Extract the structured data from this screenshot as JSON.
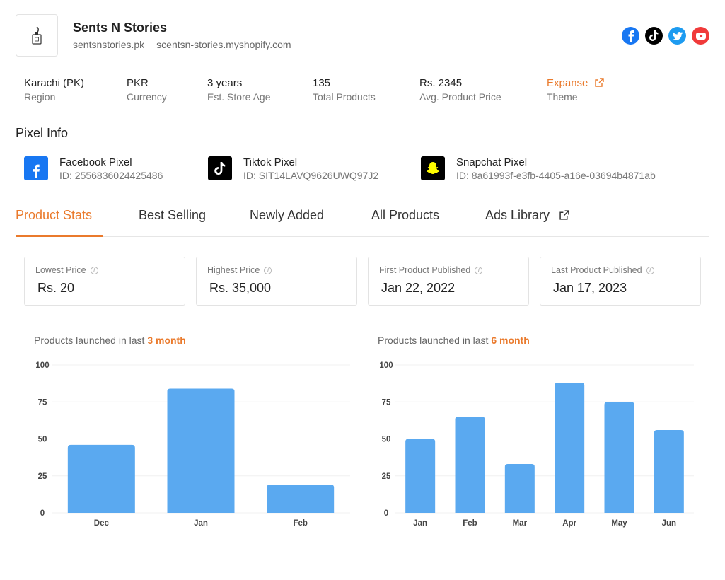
{
  "store": {
    "name": "Sents N Stories",
    "domain": "sentsnstories.pk",
    "shopify_url": "scentsn-stories.myshopify.com",
    "socials": [
      {
        "icon": "facebook-icon",
        "color": "#1877f2"
      },
      {
        "icon": "tiktok-icon",
        "color": "#000000"
      },
      {
        "icon": "twitter-icon",
        "color": "#1d9bf0"
      },
      {
        "icon": "youtube-icon",
        "color": "#f03a3a"
      }
    ]
  },
  "meta": [
    {
      "value": "Karachi (PK)",
      "label": "Region"
    },
    {
      "value": "PKR",
      "label": "Currency"
    },
    {
      "value": "3 years",
      "label": "Est. Store Age"
    },
    {
      "value": "135",
      "label": "Total Products"
    },
    {
      "value": "Rs. 2345",
      "label": "Avg. Product Price"
    },
    {
      "value": "Expanse",
      "label": "Theme"
    }
  ],
  "pixel_info": {
    "title": "Pixel Info",
    "pixels": [
      {
        "name": "Facebook Pixel",
        "id": "ID: 2556836024425486",
        "icon": "facebook-pixel-icon",
        "color": "#1877f2"
      },
      {
        "name": "Tiktok Pixel",
        "id": "ID: SIT14LAVQ9626UWQ97J2",
        "icon": "tiktok-pixel-icon",
        "color": "#000000"
      },
      {
        "name": "Snapchat Pixel",
        "id": "ID: 8a61993f-e3fb-4405-a16e-03694b4871ab",
        "icon": "snapchat-pixel-icon",
        "color": "#000000"
      }
    ]
  },
  "tabs": [
    "Product Stats",
    "Best Selling",
    "Newly Added",
    "All Products",
    "Ads Library"
  ],
  "stats": [
    {
      "label": "Lowest Price",
      "value": "Rs. 20"
    },
    {
      "label": "Highest Price",
      "value": "Rs. 35,000"
    },
    {
      "label": "First Product Published",
      "value": "Jan 22, 2022"
    },
    {
      "label": "Last Product Published",
      "value": "Jan 17, 2023"
    }
  ],
  "colors": {
    "accent": "#ea7a2c",
    "bar": "#5aa9f0"
  },
  "chart_titles": [
    {
      "prefix": "Products launched in last ",
      "highlight": "3 month"
    },
    {
      "prefix": "Products launched in last ",
      "highlight": "6 month"
    }
  ],
  "chart_data": [
    {
      "type": "bar",
      "title": "Products launched in last 3 month",
      "categories": [
        "Dec",
        "Jan",
        "Feb"
      ],
      "values": [
        46,
        84,
        19
      ],
      "ylim": [
        0,
        100
      ],
      "yticks": [
        "0",
        "25",
        "50",
        "75",
        "100"
      ],
      "grid": true
    },
    {
      "type": "bar",
      "title": "Products launched in last 6 month",
      "categories": [
        "Jan",
        "Feb",
        "Mar",
        "Apr",
        "May",
        "Jun"
      ],
      "values": [
        50,
        65,
        33,
        88,
        75,
        56
      ],
      "ylim": [
        0,
        100
      ],
      "yticks": [
        "0",
        "25",
        "50",
        "75",
        "100"
      ],
      "grid": true
    }
  ]
}
